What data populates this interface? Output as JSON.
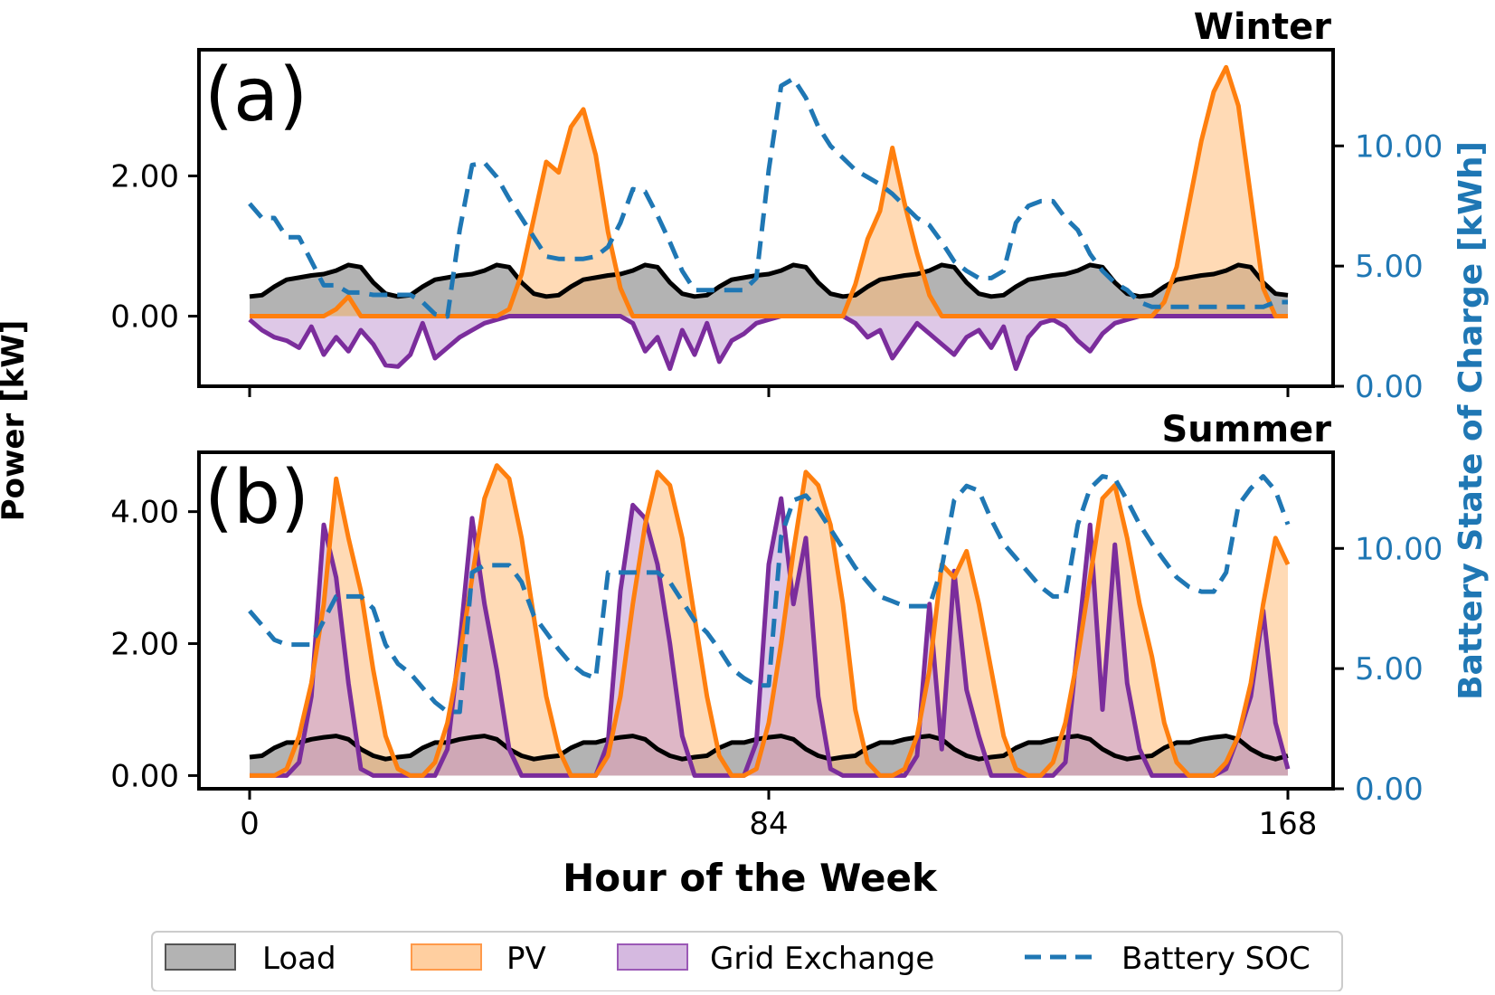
{
  "chart_data": [
    {
      "type": "area",
      "panel_label": "(a)",
      "title": "Winter",
      "xlim": [
        0,
        168
      ],
      "ylim": [
        -1.0,
        3.8
      ],
      "y2lim": [
        0,
        14
      ],
      "xticks": [
        0,
        84,
        168
      ],
      "yticks": [
        0,
        2
      ],
      "yticks_labels": [
        "0.00",
        "2.00"
      ],
      "y2ticks": [
        0,
        5,
        10
      ],
      "y2ticks_labels": [
        "0.00",
        "5.00",
        "10.00"
      ],
      "x": [
        0,
        2,
        4,
        6,
        8,
        10,
        12,
        14,
        16,
        18,
        20,
        22,
        24,
        26,
        28,
        30,
        32,
        34,
        36,
        38,
        40,
        42,
        44,
        46,
        48,
        50,
        52,
        54,
        56,
        58,
        60,
        62,
        64,
        66,
        68,
        70,
        72,
        74,
        76,
        78,
        80,
        82,
        84,
        86,
        88,
        90,
        92,
        94,
        96,
        98,
        100,
        102,
        104,
        106,
        108,
        110,
        112,
        114,
        116,
        118,
        120,
        122,
        124,
        126,
        128,
        130,
        132,
        134,
        136,
        138,
        140,
        142,
        144,
        146,
        148,
        150,
        152,
        154,
        156,
        158,
        160,
        162,
        164,
        166,
        168
      ],
      "series": [
        {
          "name": "Load",
          "values": [
            0.28,
            0.3,
            0.42,
            0.52,
            0.55,
            0.58,
            0.6,
            0.65,
            0.73,
            0.7,
            0.48,
            0.32,
            0.28,
            0.3,
            0.42,
            0.52,
            0.55,
            0.58,
            0.6,
            0.65,
            0.73,
            0.7,
            0.48,
            0.32,
            0.28,
            0.3,
            0.42,
            0.52,
            0.55,
            0.58,
            0.6,
            0.65,
            0.73,
            0.7,
            0.48,
            0.32,
            0.28,
            0.3,
            0.42,
            0.52,
            0.55,
            0.58,
            0.6,
            0.65,
            0.73,
            0.7,
            0.48,
            0.32,
            0.28,
            0.3,
            0.42,
            0.52,
            0.55,
            0.58,
            0.6,
            0.65,
            0.73,
            0.7,
            0.48,
            0.32,
            0.28,
            0.3,
            0.42,
            0.52,
            0.55,
            0.58,
            0.6,
            0.65,
            0.73,
            0.7,
            0.48,
            0.32,
            0.28,
            0.3,
            0.42,
            0.52,
            0.55,
            0.58,
            0.6,
            0.65,
            0.73,
            0.7,
            0.48,
            0.32,
            0.3
          ]
        },
        {
          "name": "PV",
          "values": [
            0,
            0,
            0,
            0,
            0,
            0,
            0,
            0.1,
            0.28,
            0,
            0,
            0,
            0,
            0,
            0,
            0,
            0,
            0,
            0,
            0,
            0,
            0.1,
            0.6,
            1.4,
            2.2,
            2.05,
            2.7,
            2.95,
            2.3,
            1.2,
            0.4,
            0,
            0,
            0,
            0,
            0,
            0,
            0,
            0,
            0,
            0,
            0,
            0,
            0,
            0,
            0,
            0,
            0,
            0,
            0.45,
            1.1,
            1.5,
            2.4,
            1.6,
            0.9,
            0.3,
            0,
            0,
            0,
            0,
            0,
            0,
            0,
            0,
            0,
            0,
            0,
            0,
            0,
            0,
            0,
            0,
            0,
            0,
            0.2,
            0.7,
            1.6,
            2.5,
            3.2,
            3.55,
            3.0,
            1.7,
            0.4,
            0,
            0
          ]
        },
        {
          "name": "Grid Exchange",
          "values": [
            -0.05,
            -0.2,
            -0.3,
            -0.35,
            -0.45,
            -0.15,
            -0.55,
            -0.3,
            -0.5,
            -0.2,
            -0.4,
            -0.7,
            -0.72,
            -0.55,
            -0.1,
            -0.6,
            -0.45,
            -0.3,
            -0.2,
            -0.1,
            -0.05,
            0,
            0,
            0,
            0,
            0,
            0,
            0,
            0,
            0,
            0,
            -0.1,
            -0.5,
            -0.3,
            -0.75,
            -0.2,
            -0.55,
            -0.1,
            -0.65,
            -0.35,
            -0.25,
            -0.1,
            -0.05,
            0,
            0,
            0,
            0,
            0,
            0,
            -0.1,
            -0.3,
            -0.2,
            -0.6,
            -0.35,
            -0.1,
            -0.25,
            -0.4,
            -0.55,
            -0.3,
            -0.2,
            -0.45,
            -0.15,
            -0.75,
            -0.3,
            -0.1,
            -0.05,
            -0.15,
            -0.35,
            -0.5,
            -0.25,
            -0.1,
            -0.05,
            0,
            0,
            0,
            0,
            0,
            0,
            0,
            0,
            0,
            0,
            0,
            0,
            0
          ]
        },
        {
          "name": "Battery SOC",
          "values": [
            7.6,
            7.0,
            7.0,
            6.2,
            6.2,
            5.2,
            4.2,
            4.2,
            3.9,
            3.9,
            3.8,
            3.8,
            3.8,
            3.8,
            3.5,
            3.0,
            2.9,
            6.5,
            9.2,
            9.3,
            8.7,
            7.8,
            7.0,
            6.2,
            5.4,
            5.3,
            5.3,
            5.3,
            5.4,
            5.8,
            6.8,
            8.2,
            8.1,
            7.1,
            6.0,
            4.8,
            4.0,
            4.0,
            4.0,
            4.0,
            4.0,
            4.5,
            9.0,
            12.5,
            12.8,
            12.0,
            10.8,
            10.0,
            9.5,
            9.0,
            8.7,
            8.4,
            8.0,
            7.5,
            7.0,
            6.7,
            6.0,
            5.2,
            4.8,
            4.5,
            4.5,
            4.8,
            6.8,
            7.5,
            7.7,
            7.7,
            7.0,
            6.5,
            5.5,
            4.8,
            4.3,
            4.0,
            3.5,
            3.3,
            3.3,
            3.3,
            3.3,
            3.3,
            3.3,
            3.3,
            3.3,
            3.3,
            3.3,
            3.5,
            3.5
          ]
        }
      ]
    },
    {
      "type": "area",
      "panel_label": "(b)",
      "title": "Summer",
      "xlim": [
        0,
        168
      ],
      "ylim": [
        -0.2,
        4.9
      ],
      "y2lim": [
        0,
        14
      ],
      "xticks": [
        0,
        84,
        168
      ],
      "xticks_labels": [
        "0",
        "84",
        "168"
      ],
      "yticks": [
        0,
        2,
        4
      ],
      "yticks_labels": [
        "0.00",
        "2.00",
        "4.00"
      ],
      "y2ticks": [
        0,
        5,
        10
      ],
      "y2ticks_labels": [
        "0.00",
        "5.00",
        "10.00"
      ],
      "x": [
        0,
        2,
        4,
        6,
        8,
        10,
        12,
        14,
        16,
        18,
        20,
        22,
        24,
        26,
        28,
        30,
        32,
        34,
        36,
        38,
        40,
        42,
        44,
        46,
        48,
        50,
        52,
        54,
        56,
        58,
        60,
        62,
        64,
        66,
        68,
        70,
        72,
        74,
        76,
        78,
        80,
        82,
        84,
        86,
        88,
        90,
        92,
        94,
        96,
        98,
        100,
        102,
        104,
        106,
        108,
        110,
        112,
        114,
        116,
        118,
        120,
        122,
        124,
        126,
        128,
        130,
        132,
        134,
        136,
        138,
        140,
        142,
        144,
        146,
        148,
        150,
        152,
        154,
        156,
        158,
        160,
        162,
        164,
        166,
        168
      ],
      "series": [
        {
          "name": "Load",
          "values": [
            0.28,
            0.3,
            0.42,
            0.5,
            0.5,
            0.55,
            0.58,
            0.6,
            0.55,
            0.4,
            0.3,
            0.25,
            0.28,
            0.3,
            0.42,
            0.5,
            0.5,
            0.55,
            0.58,
            0.6,
            0.55,
            0.4,
            0.3,
            0.25,
            0.28,
            0.3,
            0.42,
            0.5,
            0.5,
            0.55,
            0.58,
            0.6,
            0.55,
            0.4,
            0.3,
            0.25,
            0.28,
            0.3,
            0.42,
            0.5,
            0.5,
            0.55,
            0.58,
            0.6,
            0.55,
            0.4,
            0.3,
            0.25,
            0.28,
            0.3,
            0.42,
            0.5,
            0.5,
            0.55,
            0.58,
            0.6,
            0.55,
            0.4,
            0.3,
            0.25,
            0.28,
            0.3,
            0.42,
            0.5,
            0.5,
            0.55,
            0.58,
            0.6,
            0.55,
            0.4,
            0.3,
            0.25,
            0.28,
            0.3,
            0.42,
            0.5,
            0.5,
            0.55,
            0.58,
            0.6,
            0.55,
            0.4,
            0.3,
            0.25,
            0.3
          ]
        },
        {
          "name": "PV",
          "values": [
            0,
            0,
            0,
            0.1,
            0.6,
            1.4,
            2.6,
            4.5,
            3.6,
            2.8,
            1.6,
            0.6,
            0.1,
            0,
            0,
            0.2,
            0.8,
            1.8,
            3.0,
            4.2,
            4.7,
            4.5,
            3.6,
            2.4,
            1.2,
            0.4,
            0,
            0,
            0,
            0.3,
            1.2,
            2.6,
            3.8,
            4.6,
            4.4,
            3.6,
            2.4,
            1.2,
            0.3,
            0,
            0,
            0.1,
            0.8,
            2.0,
            3.4,
            4.6,
            4.4,
            3.8,
            2.6,
            1.0,
            0.2,
            0,
            0,
            0.1,
            0.6,
            1.6,
            3.2,
            3.0,
            3.4,
            2.6,
            1.6,
            0.6,
            0.1,
            0,
            0,
            0.2,
            0.8,
            1.8,
            3.0,
            4.2,
            4.4,
            3.6,
            2.6,
            1.8,
            0.8,
            0.2,
            0,
            0,
            0,
            0.2,
            0.6,
            1.4,
            2.6,
            3.6,
            3.2
          ]
        },
        {
          "name": "Grid Exchange",
          "values": [
            0,
            0,
            0,
            0,
            0.2,
            1.2,
            3.8,
            3.0,
            1.4,
            0.1,
            0,
            0,
            0,
            0,
            0,
            0,
            0.4,
            2.0,
            3.9,
            2.6,
            1.6,
            0.4,
            0,
            0,
            0,
            0,
            0,
            0,
            0,
            0.5,
            2.8,
            4.1,
            3.9,
            3.2,
            2.0,
            0.6,
            0,
            0,
            0,
            0,
            0,
            0.5,
            3.2,
            4.2,
            2.6,
            3.6,
            1.2,
            0.1,
            0,
            0,
            0,
            0,
            0,
            0,
            0.3,
            2.6,
            0.4,
            3.1,
            1.3,
            0.6,
            0,
            0,
            0,
            0,
            0,
            0,
            0.2,
            2.0,
            3.8,
            1.0,
            3.5,
            1.4,
            0.4,
            0,
            0,
            0,
            0,
            0,
            0,
            0.1,
            0.6,
            1.2,
            2.5,
            0.8,
            0.1
          ]
        },
        {
          "name": "Battery SOC",
          "values": [
            7.4,
            6.8,
            6.2,
            6.0,
            6.0,
            6.0,
            7.0,
            8.0,
            8.0,
            8.0,
            7.5,
            6.0,
            5.2,
            4.8,
            4.2,
            3.6,
            3.2,
            3.2,
            9.0,
            9.3,
            9.3,
            9.3,
            8.6,
            7.2,
            6.5,
            5.8,
            5.2,
            4.8,
            4.6,
            9.0,
            9.0,
            9.0,
            9.0,
            9.0,
            8.6,
            7.8,
            7.0,
            6.5,
            5.8,
            5.0,
            4.6,
            4.3,
            4.3,
            10.5,
            12.0,
            12.2,
            11.6,
            10.8,
            10.0,
            9.2,
            8.6,
            8.0,
            7.8,
            7.6,
            7.6,
            7.6,
            9.2,
            12.0,
            12.6,
            12.4,
            11.2,
            10.2,
            9.6,
            9.0,
            8.4,
            8.0,
            8.0,
            11.0,
            12.5,
            13.0,
            12.9,
            12.0,
            11.0,
            10.2,
            9.5,
            8.8,
            8.4,
            8.2,
            8.2,
            9.0,
            11.8,
            12.5,
            13.0,
            12.4,
            11.0
          ]
        }
      ]
    }
  ],
  "shared": {
    "xlabel": "Hour of the Week",
    "ylabel": "Power [kW]",
    "y2label": "Battery State of Charge [kWh]",
    "legend_position": "bottom",
    "legend": [
      {
        "name": "Load",
        "kind": "patch"
      },
      {
        "name": "PV",
        "kind": "patch"
      },
      {
        "name": "Grid Exchange",
        "kind": "patch"
      },
      {
        "name": "Battery SOC",
        "kind": "dashed-line"
      }
    ],
    "colors": {
      "Load": "#000000",
      "Load_fill": "#808080",
      "PV": "#ff7f0e",
      "PV_fill": "#ffbb78",
      "Grid Exchange": "#7b2d9c",
      "Grid_fill": "#c39bd3",
      "Battery SOC": "#1f77b4",
      "axis": "#000000"
    }
  }
}
